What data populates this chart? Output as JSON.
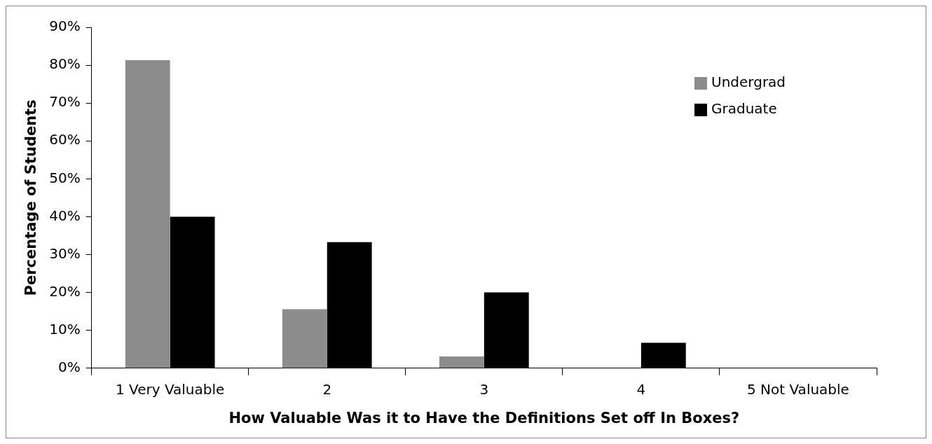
{
  "chart_data": {
    "type": "bar",
    "xlabel": "How Valuable Was it to Have the Definitions Set off In Boxes?",
    "ylabel": "Percentage of Students",
    "categories": [
      "1 Very Valuable",
      "2",
      "3",
      "4",
      "5 Not Valuable"
    ],
    "series": [
      {
        "name": "Undergrad",
        "color": "#8c8c8c",
        "values": [
          81.3,
          15.6,
          3.1,
          0,
          0
        ]
      },
      {
        "name": "Graduate",
        "color": "#000000",
        "values": [
          40,
          33.3,
          20,
          6.7,
          0
        ]
      }
    ],
    "ylim": [
      0,
      90
    ],
    "yticks": [
      {
        "value": 0,
        "label": "0%"
      },
      {
        "value": 10,
        "label": "10%"
      },
      {
        "value": 20,
        "label": "20%"
      },
      {
        "value": 30,
        "label": "30%"
      },
      {
        "value": 40,
        "label": "40%"
      },
      {
        "value": 50,
        "label": "50%"
      },
      {
        "value": 60,
        "label": "60%"
      },
      {
        "value": 70,
        "label": "70%"
      },
      {
        "value": 80,
        "label": "80%"
      },
      {
        "value": 90,
        "label": "90%"
      }
    ],
    "grid": false,
    "legend": "top right"
  }
}
